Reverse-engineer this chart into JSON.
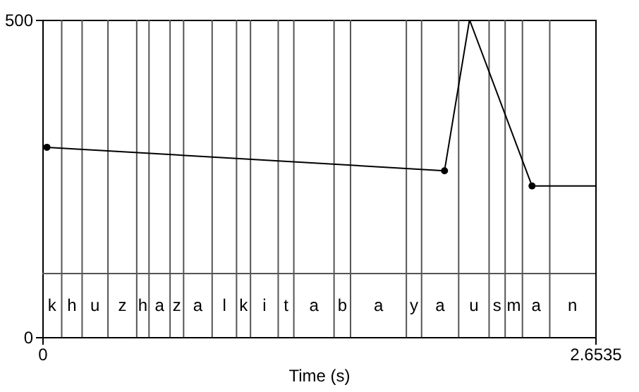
{
  "chart_data": {
    "type": "line",
    "xlabel": "Time (s)",
    "xlim": [
      0,
      2.6535
    ],
    "xticks": [
      {
        "value": 0,
        "label": "0"
      },
      {
        "value": 2.6535,
        "label": "2.6535"
      }
    ],
    "ylim": [
      0,
      500
    ],
    "yticks": [
      0,
      500
    ],
    "grid": false,
    "series": [
      {
        "color": "#000000",
        "marker": "none",
        "x": [
          0.022,
          1.93,
          2.05,
          2.35,
          2.6535
        ],
        "values": [
          299,
          262,
          500,
          238,
          238
        ]
      },
      {
        "type": "scatter",
        "color": "#000000",
        "marker": "circle",
        "x": [
          0.022,
          1.93,
          2.35
        ],
        "values": [
          299,
          262,
          238
        ]
      }
    ],
    "ref_lines": [
      {
        "axis": "x",
        "value": 0.093
      },
      {
        "axis": "x",
        "value": 0.191
      },
      {
        "axis": "x",
        "value": 0.315
      },
      {
        "axis": "x",
        "value": 0.453
      },
      {
        "axis": "x",
        "value": 0.512
      },
      {
        "axis": "x",
        "value": 0.613
      },
      {
        "axis": "x",
        "value": 0.678
      },
      {
        "axis": "x",
        "value": 0.815
      },
      {
        "axis": "x",
        "value": 0.932
      },
      {
        "axis": "x",
        "value": 0.999
      },
      {
        "axis": "x",
        "value": 1.132
      },
      {
        "axis": "x",
        "value": 1.207
      },
      {
        "axis": "x",
        "value": 1.4
      },
      {
        "axis": "x",
        "value": 1.479
      },
      {
        "axis": "x",
        "value": 1.747
      },
      {
        "axis": "x",
        "value": 1.82
      },
      {
        "axis": "x",
        "value": 1.998
      },
      {
        "axis": "x",
        "value": 2.144
      },
      {
        "axis": "x",
        "value": 2.221
      },
      {
        "axis": "x",
        "value": 2.304
      },
      {
        "axis": "x",
        "value": 2.435
      },
      {
        "axis": "y",
        "value": 100
      }
    ],
    "annotations": [
      "k",
      "h",
      "u",
      "z",
      "h",
      "a",
      "z",
      "a",
      "l",
      "k",
      "i",
      "t",
      "a",
      "b",
      "a",
      "y",
      "a",
      "u",
      "s",
      "m",
      "a",
      "n"
    ]
  }
}
